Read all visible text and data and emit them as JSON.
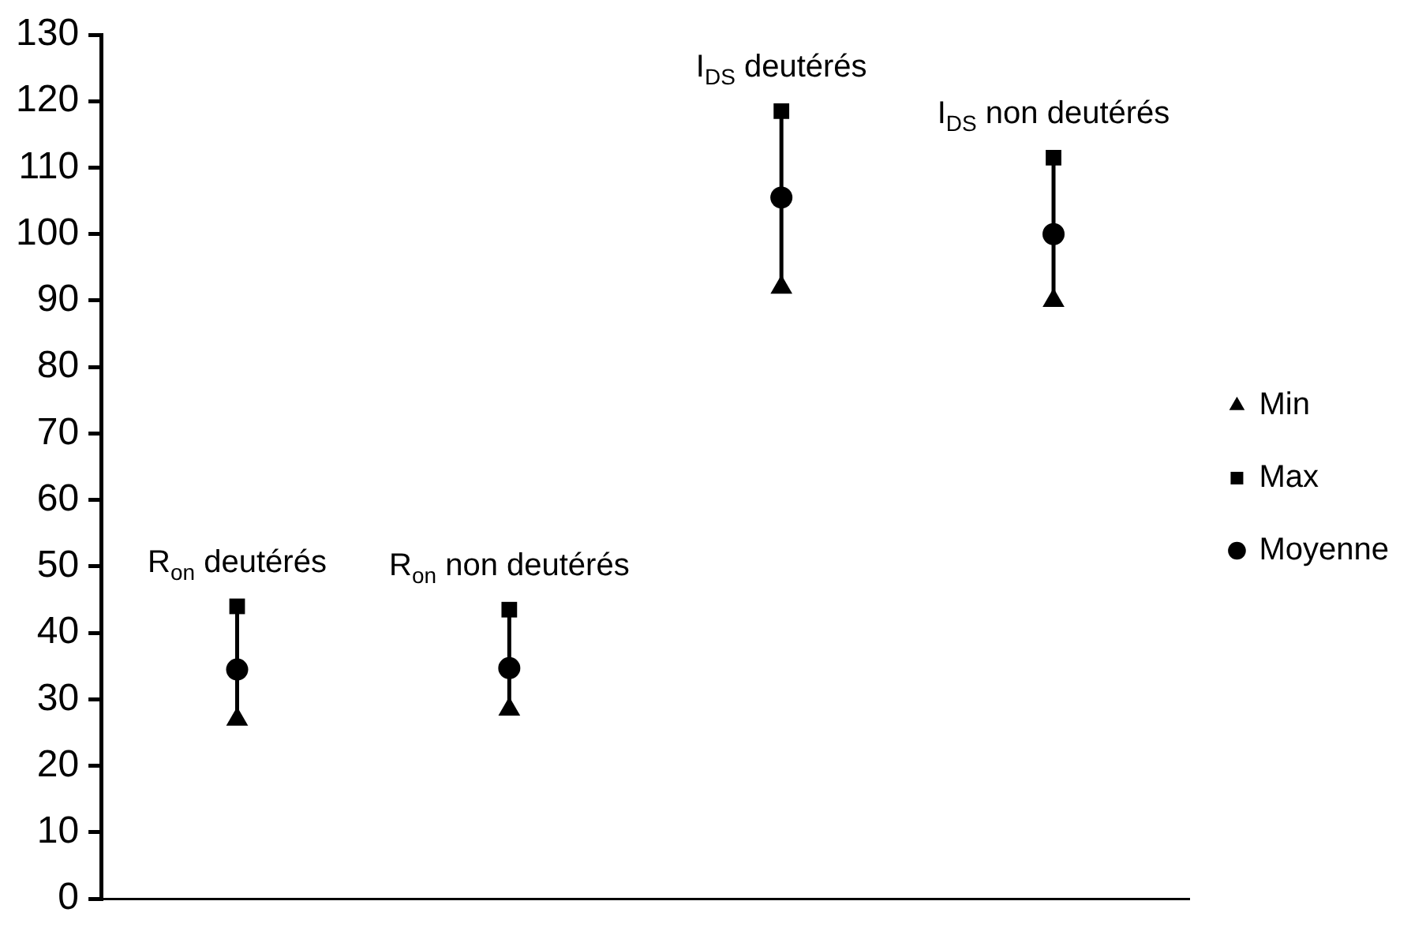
{
  "chart_data": {
    "type": "scatter",
    "categories": [
      "R$_{on}$ deutérés",
      "R$_{on}$ non deutérés",
      "I$_{DS}$ deutérés",
      "I$_{DS}$ non deutérés"
    ],
    "series": [
      {
        "name": "Min",
        "color": "#000000",
        "marker": "triangle",
        "values": [
          27,
          28.5,
          92,
          90
        ]
      },
      {
        "name": "Max",
        "color": "#000000",
        "marker": "square",
        "values": [
          44,
          43.5,
          118.5,
          111.5
        ]
      },
      {
        "name": "Moyenne",
        "color": "#000000",
        "marker": "circle",
        "values": [
          34.5,
          34.7,
          105.5,
          100
        ]
      }
    ],
    "ylim": [
      0,
      130
    ],
    "yticks": [
      0,
      10,
      20,
      30,
      40,
      50,
      60,
      70,
      80,
      90,
      100,
      110,
      120,
      130
    ],
    "grid": false,
    "legend": "right",
    "tick_labels": "y"
  }
}
